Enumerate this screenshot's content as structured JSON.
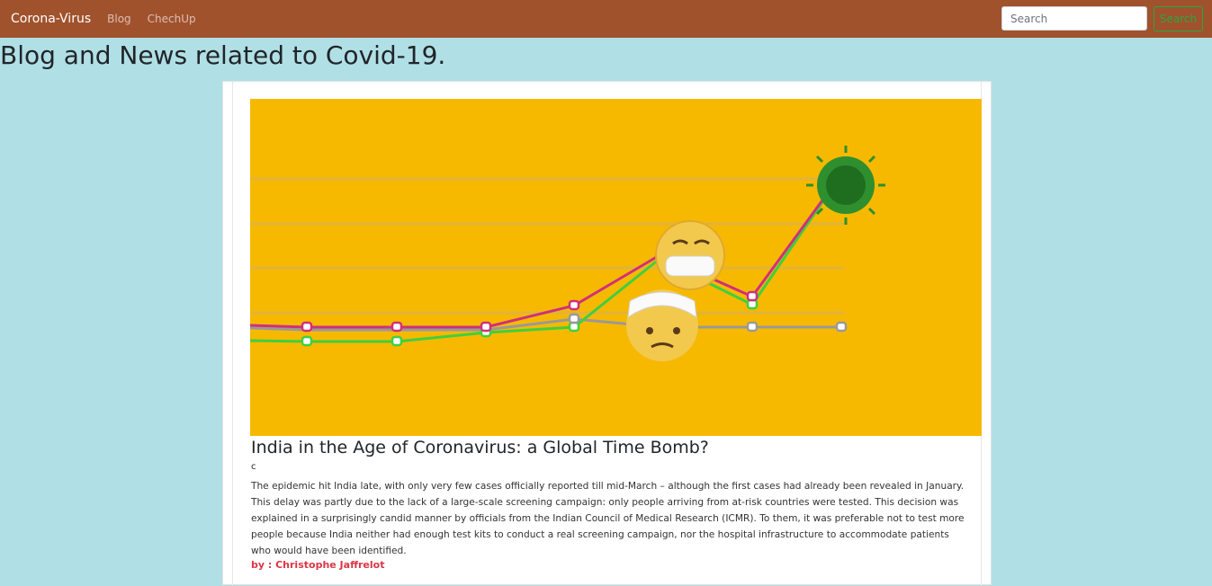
{
  "navbar": {
    "brand": "Corona-Virus",
    "links": [
      "Blog",
      "ChechUp"
    ],
    "search_placeholder": "Search",
    "search_button": "Search",
    "background_color": "#a0522d"
  },
  "page": {
    "title": "Blog and News related to Covid-19.",
    "background_color": "#b0e0e6"
  },
  "post": {
    "image_description": "covid-chart-illustration",
    "title": "India in the Age of Coronavirus: a Global Time Bomb?",
    "subtitle": "c",
    "body": "The epidemic hit India late, with only very few cases officially reported till mid-March – although the first cases had already been revealed in January. This delay was partly due to the lack of a large-scale screening campaign: only people arriving from at-risk countries were tested. This decision was explained in a surprisingly candid manner by officials from the Indian Council of Medical Research (ICMR). To them, it was preferable not to test more people because India neither had enough test kits to conduct a real screening campaign, nor the hospital infrastructure to accommodate patients who would have been identified.",
    "author": "by : Christophe Jaffrelot",
    "author_color": "#dc3545"
  }
}
